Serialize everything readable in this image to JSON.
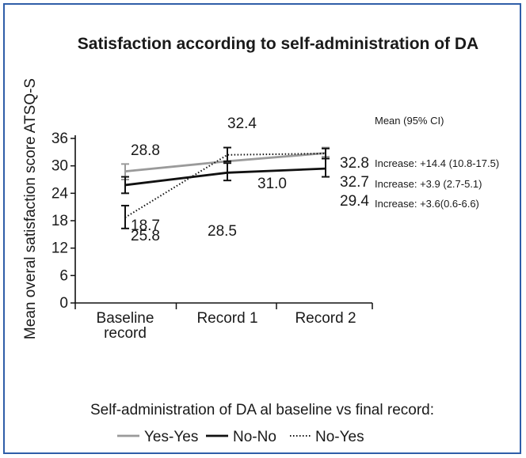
{
  "chart_data": {
    "type": "line",
    "title": "Satisfaction according to self-administration of DA",
    "ylabel": "Mean overal satisfaction score  ATSQ-S",
    "xlabel": "",
    "categories": [
      "Baseline record",
      "Record 1",
      "Record 2"
    ],
    "category_lines": [
      [
        "Baseline",
        "record"
      ],
      [
        "Record 1"
      ],
      [
        "Record 2"
      ]
    ],
    "ylim": [
      0,
      36
    ],
    "yticks": [
      "0",
      "6",
      "12",
      "18",
      "24",
      "30",
      "36"
    ],
    "grid": false,
    "series": [
      {
        "name": "Yes-Yes",
        "color": "#9a9a9a",
        "style": "solid",
        "values": [
          28.8,
          31.0,
          32.8
        ],
        "ci": [
          [
            27.0,
            30.4
          ],
          null,
          [
            32.0,
            34.0
          ]
        ],
        "labels": [
          "28.8",
          "31.0",
          "32.8"
        ],
        "increase": "Increase: +3.9 (2.7-5.1)"
      },
      {
        "name": "No-No",
        "color": "#111111",
        "style": "solid",
        "values": [
          25.8,
          28.5,
          29.4
        ],
        "ci": [
          [
            24.0,
            27.6
          ],
          [
            26.8,
            30.6
          ],
          [
            27.6,
            31.6
          ]
        ],
        "labels": [
          "25.8",
          "28.5",
          "29.4"
        ],
        "increase": "Increase: +3.6(0.6-6.6)"
      },
      {
        "name": "No-Yes",
        "color": "#111111",
        "style": "dotted",
        "values": [
          18.7,
          32.4,
          32.7
        ],
        "ci": [
          [
            16.3,
            21.3
          ],
          [
            31.0,
            34.0
          ],
          [
            31.6,
            33.8
          ]
        ],
        "labels": [
          "18.7",
          "32.4",
          "32.7"
        ],
        "increase": "Increase: +14.4 (10.8-17.5)"
      }
    ],
    "annotation_header": "Mean (95% CI)",
    "legend_title": "Self-administration of DA al baseline vs final record:",
    "legend_position": "bottom"
  }
}
